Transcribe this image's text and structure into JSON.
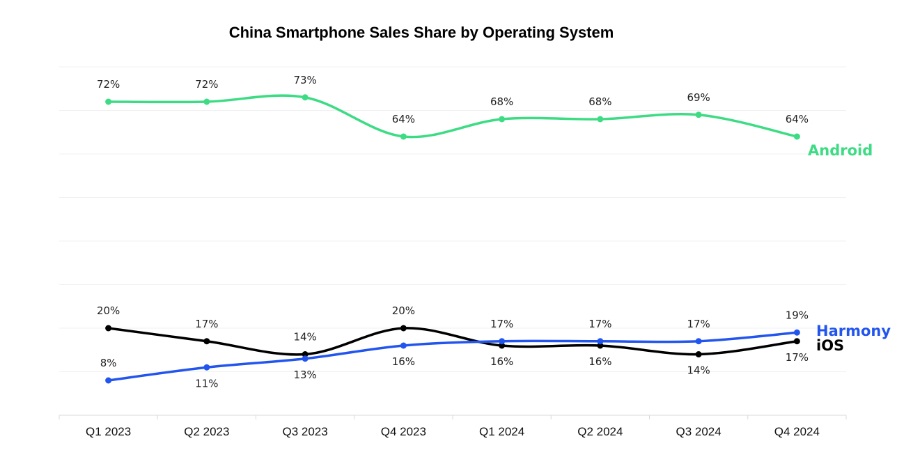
{
  "chart_data": {
    "type": "line",
    "title": "China Smartphone Sales Share by Operating System",
    "xlabel": "",
    "ylabel": "",
    "ylim": [
      0,
      80
    ],
    "y_gridlines": [
      10,
      20,
      30,
      40,
      50,
      60,
      70,
      80
    ],
    "grid": true,
    "categories": [
      "Q1 2023",
      "Q2 2023",
      "Q3 2023",
      "Q4 2023",
      "Q1 2024",
      "Q2 2024",
      "Q3 2024",
      "Q4 2024"
    ],
    "series": [
      {
        "name": "Android",
        "color": "#3ddc84",
        "values": [
          72,
          72,
          73,
          64,
          68,
          68,
          69,
          64
        ],
        "labels": [
          "72%",
          "72%",
          "73%",
          "64%",
          "68%",
          "68%",
          "69%",
          "64%"
        ],
        "label_position": [
          "above",
          "above",
          "above",
          "above",
          "above",
          "above",
          "above",
          "above"
        ]
      },
      {
        "name": "Harmony",
        "color": "#2255ee",
        "values": [
          8,
          11,
          13,
          16,
          17,
          17,
          17,
          19
        ],
        "labels": [
          "8%",
          "11%",
          "13%",
          "16%",
          "17%",
          "17%",
          "17%",
          "19%"
        ],
        "label_position": [
          "above",
          "below",
          "below",
          "below",
          "above",
          "above",
          "above",
          "above"
        ]
      },
      {
        "name": "iOS",
        "color": "#000000",
        "values": [
          20,
          17,
          14,
          20,
          16,
          16,
          14,
          17
        ],
        "labels": [
          "20%",
          "17%",
          "14%",
          "20%",
          "16%",
          "16%",
          "14%",
          "17%"
        ],
        "label_position": [
          "above",
          "above",
          "above",
          "above",
          "below",
          "below",
          "below",
          "below"
        ]
      }
    ],
    "legend": "inline-right"
  }
}
